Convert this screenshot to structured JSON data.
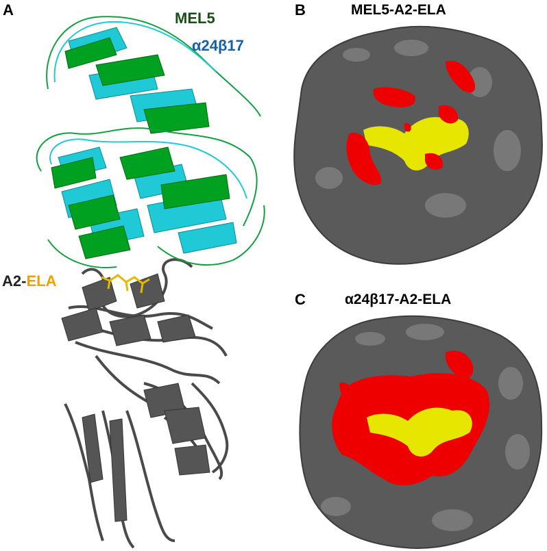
{
  "panels": {
    "a": {
      "letter": "A",
      "tcr_labels": {
        "first": "MEL5",
        "second": "α24β17"
      },
      "mhc_label": {
        "prefix": "A2-",
        "peptide": "ELA"
      }
    },
    "b": {
      "letter": "B",
      "title": "MEL5-A2-ELA"
    },
    "c": {
      "letter": "C",
      "title": "α24β17-A2-ELA"
    }
  },
  "colors": {
    "mel5": "#009a1a",
    "alpha24beta17": "#1fc9d6",
    "mhc": "#4a4a4a",
    "peptide": "#e6b800",
    "surface": "#5a5a5a",
    "contact": "#ee0000",
    "peptide_surface": "#e6e600",
    "label_mel5": "#1a4d1a",
    "label_a24b17": "#1560a8",
    "label_ela": "#f0a000"
  }
}
